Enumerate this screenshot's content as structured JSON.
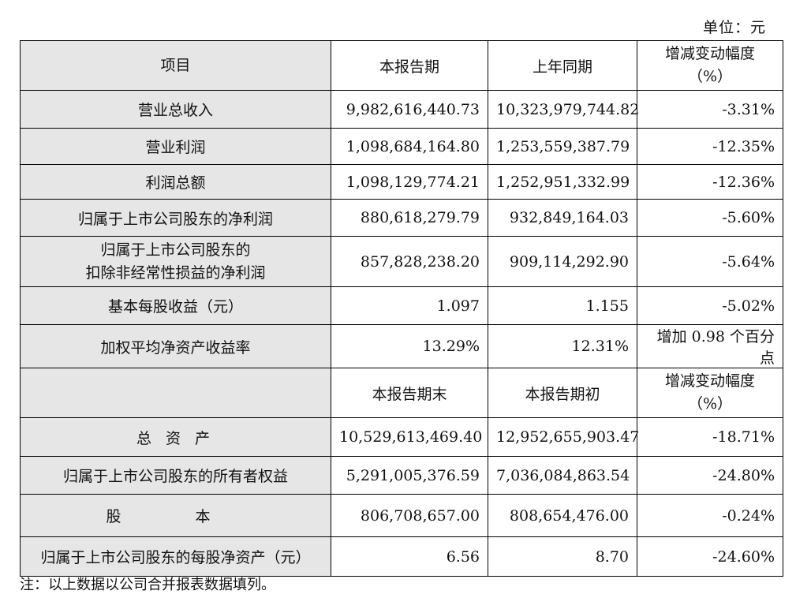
{
  "unit_label": "单位：元",
  "header1": {
    "item": "项目",
    "current": "本报告期",
    "prior": "上年同期",
    "change_line1": "增减变动幅度",
    "change_line2": "（%）"
  },
  "rows1": [
    {
      "item": "营业总收入",
      "current": "9,982,616,440.73",
      "prior": "10,323,979,744.82",
      "change": "-3.31%"
    },
    {
      "item": "营业利润",
      "current": "1,098,684,164.80",
      "prior": "1,253,559,387.79",
      "change": "-12.35%"
    },
    {
      "item": "利润总额",
      "current": "1,098,129,774.21",
      "prior": "1,252,951,332.99",
      "change": "-12.36%"
    },
    {
      "item": "归属于上市公司股东的净利润",
      "current": "880,618,279.79",
      "prior": "932,849,164.03",
      "change": "-5.60%"
    },
    {
      "item_line1": "归属于上市公司股东的",
      "item_line2": "扣除非经常性损益的净利润",
      "current": "857,828,238.20",
      "prior": "909,114,292.90",
      "change": "-5.64%"
    },
    {
      "item": "基本每股收益（元）",
      "current": "1.097",
      "prior": "1.155",
      "change": "-5.02%"
    },
    {
      "item": "加权平均净资产收益率",
      "current": "13.29%",
      "prior": "12.31%",
      "change": "增加 0.98 个百分点"
    }
  ],
  "header2": {
    "current": "本报告期末",
    "prior": "本报告期初",
    "change_line1": "增减变动幅度",
    "change_line2": "（%）"
  },
  "rows2": [
    {
      "item": "总 资 产",
      "current": "10,529,613,469.40",
      "prior": "12,952,655,903.47",
      "change": "-18.71%"
    },
    {
      "item": "归属于上市公司股东的所有者权益",
      "current": "5,291,005,376.59",
      "prior": "7,036,084,863.54",
      "change": "-24.80%"
    },
    {
      "item": "股 本",
      "current": "806,708,657.00",
      "prior": "808,654,476.00",
      "change": "-0.24%"
    },
    {
      "item": "归属于上市公司股东的每股净资产（元）",
      "current": "6.56",
      "prior": "8.70",
      "change": "-24.60%"
    }
  ],
  "note": "注：以上数据以公司合并报表数据填列。"
}
